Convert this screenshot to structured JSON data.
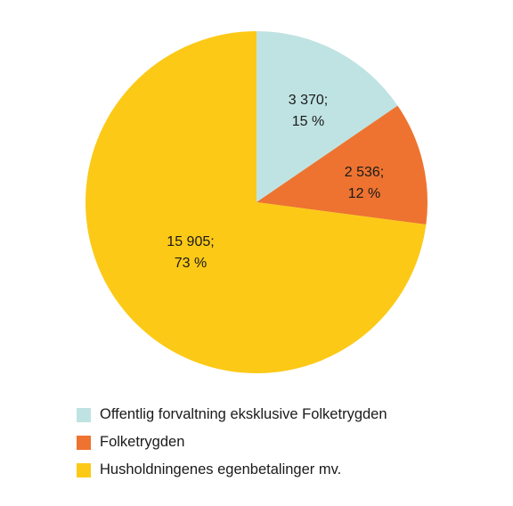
{
  "chart_data": {
    "type": "pie",
    "title": "",
    "start_angle_deg": 0,
    "direction": "clockwise",
    "slices": [
      {
        "label": "Offentlig forvaltning eksklusive Folketrygden",
        "value": 3370,
        "value_text": "3 370;",
        "percent_text": "15 %",
        "color": "#bfe3e2"
      },
      {
        "label": "Folketrygden",
        "value": 2536,
        "value_text": "2 536;",
        "percent_text": "12 %",
        "color": "#ee7330"
      },
      {
        "label": "Husholdningenes egenbetalinger mv.",
        "value": 15905,
        "value_text": "15 905;",
        "percent_text": "73 %",
        "color": "#fcc917"
      }
    ],
    "legend_position": "bottom"
  }
}
